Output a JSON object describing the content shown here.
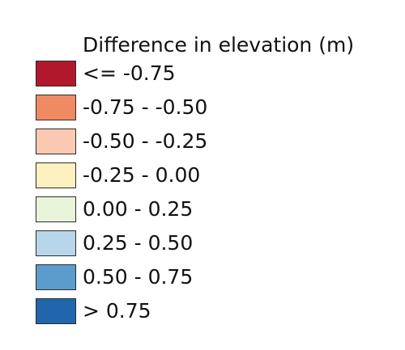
{
  "legend": {
    "title": "Difference in elevation (m)",
    "items": [
      {
        "label": "<= -0.75",
        "color": "#b2182b"
      },
      {
        "label": "-0.75 - -0.50",
        "color": "#ef8a62"
      },
      {
        "label": "-0.50 - -0.25",
        "color": "#fbc9b2"
      },
      {
        "label": "-0.25 - 0.00",
        "color": "#fef1c0"
      },
      {
        "label": "0.00 - 0.25",
        "color": "#eaf4da"
      },
      {
        "label": "0.25 - 0.50",
        "color": "#b8d6ea"
      },
      {
        "label": "0.50 - 0.75",
        "color": "#5c9ccc"
      },
      {
        "label": "> 0.75",
        "color": "#2166ac"
      }
    ]
  }
}
